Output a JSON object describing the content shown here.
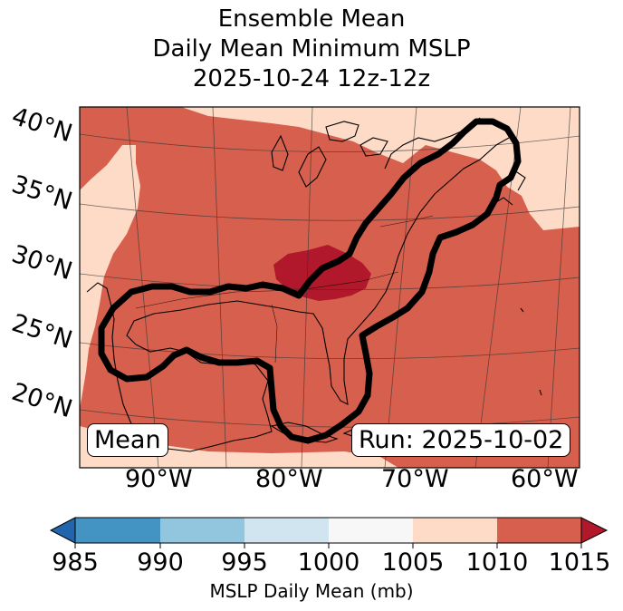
{
  "title": {
    "line1": "Ensemble Mean",
    "line2": "Daily Mean Minimum MSLP",
    "line3": "2025-10-24 12z-12z"
  },
  "lat_labels": [
    "40°N",
    "35°N",
    "30°N",
    "25°N",
    "20°N"
  ],
  "lon_labels": [
    "90°W",
    "80°W",
    "70°W",
    "60°W"
  ],
  "badges": {
    "left": "Mean",
    "right": "Run: 2025-10-02"
  },
  "colorbar": {
    "ticks": [
      "985",
      "990",
      "995",
      "1000",
      "1005",
      "1010",
      "1015"
    ],
    "label": "MSLP Daily Mean (mb)",
    "bins": [
      {
        "range": "985-990",
        "color": "#4393c3"
      },
      {
        "range": "990-995",
        "color": "#92c5de"
      },
      {
        "range": "995-1000",
        "color": "#d1e5f0"
      },
      {
        "range": "1000-1005",
        "color": "#f7f7f7"
      },
      {
        "range": "1005-1010",
        "color": "#fddbc7"
      },
      {
        "range": "1010-1015",
        "color": "#d6604d"
      }
    ],
    "under_color": "#2166ac",
    "over_color": "#b2182b"
  },
  "map_colors": {
    "field_1010_1015": "#d6604d",
    "field_1005_1010": "#fddbc7",
    "field_above_1015": "#b2182b",
    "outline": "#000000"
  }
}
